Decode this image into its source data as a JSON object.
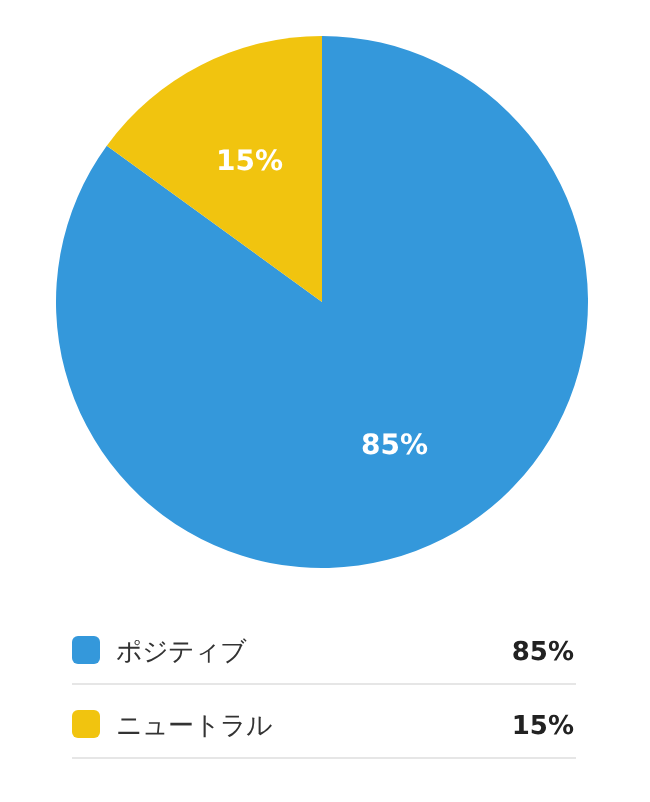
{
  "chart_data": {
    "type": "pie",
    "categories": [
      "ポジティブ",
      "ニュートラル"
    ],
    "values": [
      85,
      15
    ],
    "colors": [
      "#3498db",
      "#f1c40f"
    ],
    "value_labels": [
      "85%",
      "15%"
    ],
    "legend": "bottom"
  }
}
